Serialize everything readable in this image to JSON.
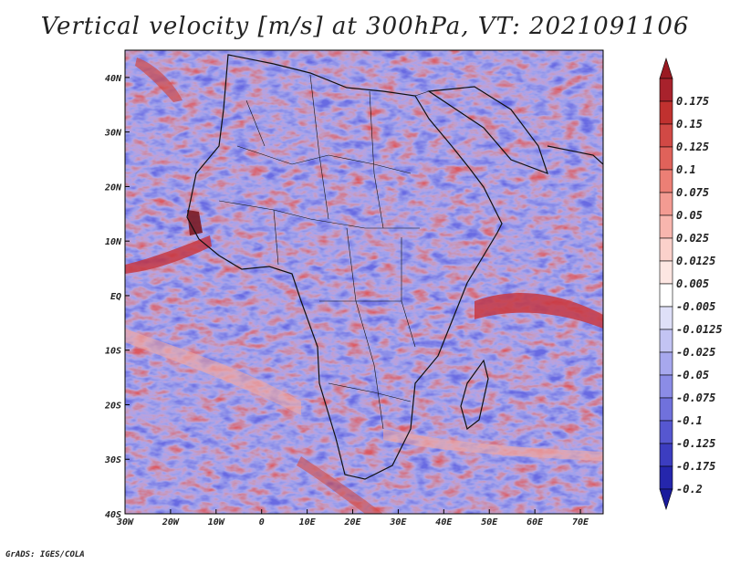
{
  "title": "Vertical velocity [m/s] at 300hPa, VT: 2021091106",
  "credit": "GrADS: IGES/COLA",
  "map": {
    "lon_range": [
      -30,
      75
    ],
    "lat_range": [
      -40,
      45
    ],
    "lat_ticks": [
      {
        "value": 40,
        "label": "40N"
      },
      {
        "value": 30,
        "label": "30N"
      },
      {
        "value": 20,
        "label": "20N"
      },
      {
        "value": 10,
        "label": "10N"
      },
      {
        "value": 0,
        "label": "EQ"
      },
      {
        "value": -10,
        "label": "10S"
      },
      {
        "value": -20,
        "label": "20S"
      },
      {
        "value": -30,
        "label": "30S"
      },
      {
        "value": -40,
        "label": "40S"
      }
    ],
    "lon_ticks": [
      {
        "value": -30,
        "label": "30W"
      },
      {
        "value": -20,
        "label": "20W"
      },
      {
        "value": -10,
        "label": "10W"
      },
      {
        "value": 0,
        "label": "0"
      },
      {
        "value": 10,
        "label": "10E"
      },
      {
        "value": 20,
        "label": "20E"
      },
      {
        "value": 30,
        "label": "30E"
      },
      {
        "value": 40,
        "label": "40E"
      },
      {
        "value": 50,
        "label": "50E"
      },
      {
        "value": 60,
        "label": "60E"
      },
      {
        "value": 70,
        "label": "70E"
      }
    ]
  },
  "colorbar": {
    "levels": [
      {
        "label": "0.175",
        "color": "#a8222c"
      },
      {
        "label": "0.15",
        "color": "#c0312f"
      },
      {
        "label": "0.125",
        "color": "#d14945"
      },
      {
        "label": "0.1",
        "color": "#e0625a"
      },
      {
        "label": "0.075",
        "color": "#ec7f75"
      },
      {
        "label": "0.05",
        "color": "#f39b92"
      },
      {
        "label": "0.025",
        "color": "#f8b6ae"
      },
      {
        "label": "0.0125",
        "color": "#fbd1cb"
      },
      {
        "label": "0.005",
        "color": "#fde6e2"
      },
      {
        "label": "-0.005",
        "color": "#ffffff"
      },
      {
        "label": "-0.0125",
        "color": "#dfe0f8"
      },
      {
        "label": "-0.025",
        "color": "#c3c4f3"
      },
      {
        "label": "-0.05",
        "color": "#a7a8ee"
      },
      {
        "label": "-0.075",
        "color": "#8b8ce6"
      },
      {
        "label": "-0.1",
        "color": "#7071dc"
      },
      {
        "label": "-0.125",
        "color": "#5657d0"
      },
      {
        "label": "-0.175",
        "color": "#3c3dc0"
      },
      {
        "label": "-0.2",
        "color": "#2526ac"
      }
    ],
    "top_extend_color": "#9a1a22",
    "bottom_extend_color": "#1a1b9c"
  }
}
